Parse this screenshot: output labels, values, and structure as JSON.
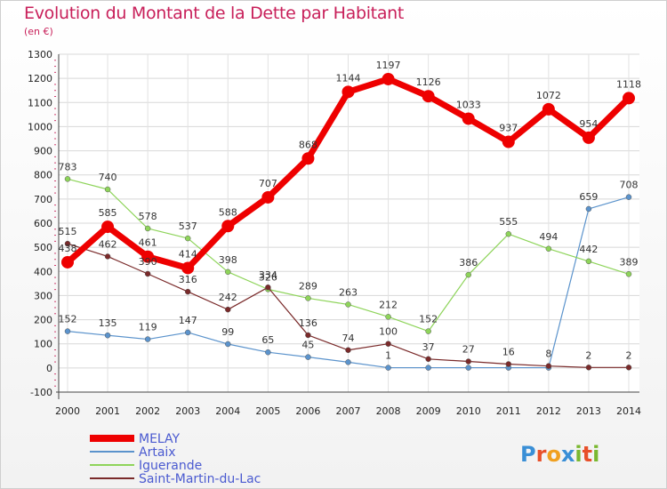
{
  "title": "Evolution du Montant de la Dette par Habitant",
  "subtitle": "(en €)",
  "logo_text": "Proxiti",
  "chart_data": {
    "type": "line",
    "title": "Evolution du Montant de la Dette par Habitant",
    "subtitle": "(en €)",
    "xlabel": "",
    "ylabel": "",
    "ylim": [
      -100,
      1300
    ],
    "yticks": [
      -100,
      0,
      100,
      200,
      300,
      400,
      500,
      600,
      700,
      800,
      900,
      1000,
      1100,
      1200,
      1300
    ],
    "grid": true,
    "legend": "bottom-left",
    "x": [
      "2000",
      "2001",
      "2002",
      "2003",
      "2004",
      "2005",
      "2006",
      "2007",
      "2008",
      "2009",
      "2010",
      "2011",
      "2012",
      "2013",
      "2014"
    ],
    "series": [
      {
        "name": "MELAY",
        "color": "#ee0000",
        "values": [
          438,
          585,
          461,
          414,
          588,
          707,
          868,
          1144,
          1197,
          1126,
          1033,
          937,
          1072,
          954,
          1118
        ]
      },
      {
        "name": "Artaix",
        "color": "#5b93cc",
        "values": [
          152,
          135,
          119,
          147,
          99,
          65,
          45,
          24,
          1,
          1,
          1,
          1,
          1,
          659,
          708
        ]
      },
      {
        "name": "Iguerande",
        "color": "#8ed45a",
        "values": [
          783,
          740,
          578,
          537,
          398,
          326,
          289,
          263,
          212,
          152,
          386,
          555,
          494,
          442,
          389
        ]
      },
      {
        "name": "Saint-Martin-du-Lac",
        "color": "#7a2a2a",
        "values": [
          515,
          462,
          390,
          316,
          242,
          334,
          136,
          74,
          100,
          37,
          27,
          16,
          8,
          2,
          2
        ]
      }
    ],
    "data_labels": [
      {
        "series": 0,
        "labels": [
          "438",
          "585",
          "461",
          "414",
          "588",
          "707",
          "868",
          "1144",
          "1197",
          "1126",
          "1033",
          "937",
          "1072",
          "954",
          "1118"
        ]
      },
      {
        "series": 1,
        "labels": [
          "152",
          "135",
          "119",
          "147",
          "99",
          "65",
          "45",
          "",
          "1",
          "",
          "",
          "",
          "",
          "659",
          "708"
        ]
      },
      {
        "series": 2,
        "labels": [
          "783",
          "740",
          "578",
          "537",
          "398",
          "326",
          "289",
          "263",
          "212",
          "152",
          "386",
          "555",
          "494",
          "442",
          "389"
        ]
      },
      {
        "series": 3,
        "labels": [
          "515",
          "462",
          "390",
          "316",
          "242",
          "334",
          "136",
          "74",
          "100",
          "37",
          "27",
          "16",
          "8",
          "2",
          "2"
        ]
      }
    ]
  }
}
